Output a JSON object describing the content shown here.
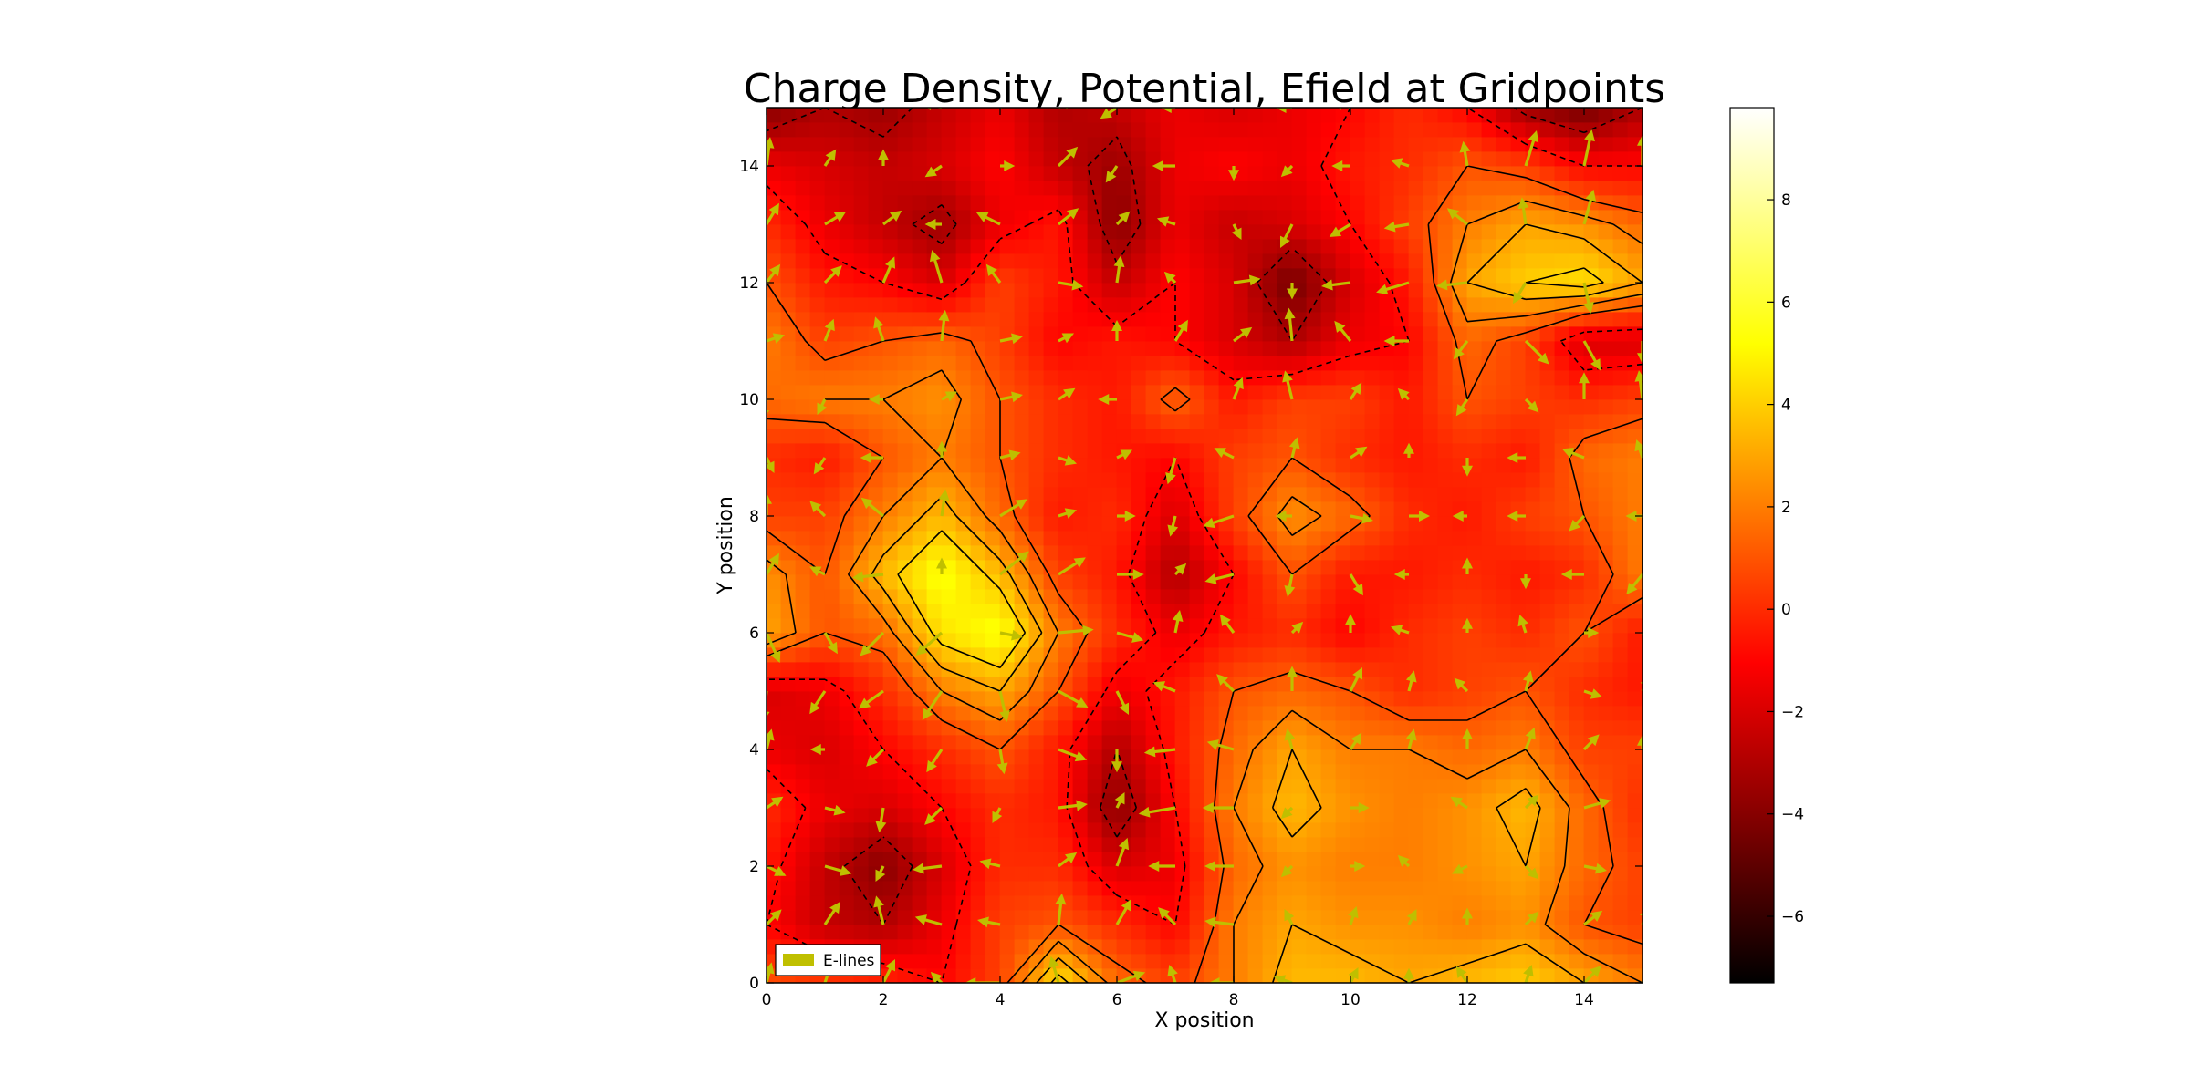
{
  "colors": {
    "background": "#ffffff",
    "arrow": "#bfbf00",
    "contour": "#000000"
  },
  "chart_data": {
    "type": "heatmap",
    "title": "Charge Density, Potential, Efield at Gridpoints",
    "xlabel": "X position",
    "ylabel": "Y position",
    "xlim": [
      0,
      15
    ],
    "ylim": [
      0,
      15
    ],
    "grid": false,
    "x_ticks": [
      "0",
      "2",
      "4",
      "6",
      "8",
      "10",
      "12",
      "14"
    ],
    "y_ticks": [
      "0",
      "2",
      "4",
      "6",
      "8",
      "10",
      "12",
      "14"
    ],
    "colorbar": {
      "range": [
        -7.3,
        9.8
      ],
      "ticks": [
        "−6",
        "−4",
        "−2",
        "0",
        "2",
        "4",
        "6",
        "8"
      ],
      "colormap": "hot"
    },
    "legend": {
      "placement": "lower-left",
      "entries": [
        "E-lines"
      ]
    },
    "field": {
      "description_grid_resolution": "1 unit",
      "x": [
        0,
        1,
        2,
        3,
        4,
        5,
        6,
        7,
        8,
        9,
        10,
        11,
        12,
        13,
        14,
        15
      ],
      "y": [
        0,
        1,
        2,
        3,
        4,
        5,
        6,
        7,
        8,
        9,
        10,
        11,
        12,
        13,
        14,
        15
      ],
      "values": [
        [
          1.0,
          0.5,
          0.0,
          -1.0,
          0.5,
          4.5,
          1.5,
          0.5,
          2.0,
          3.5,
          3.5,
          3.0,
          3.5,
          4.0,
          3.0,
          2.0
        ],
        [
          -1.0,
          -2.5,
          -3.0,
          -1.5,
          0.5,
          1.0,
          0.0,
          -1.0,
          2.0,
          3.0,
          2.5,
          2.5,
          2.0,
          2.5,
          1.0,
          0.5
        ],
        [
          -0.5,
          -2.5,
          -4.0,
          -2.0,
          0.0,
          0.0,
          -2.0,
          -1.5,
          1.5,
          2.5,
          2.0,
          2.0,
          2.5,
          3.0,
          1.5,
          0.5
        ],
        [
          0.0,
          -1.5,
          -2.0,
          -1.0,
          0.0,
          -0.5,
          -4.0,
          -1.0,
          2.0,
          3.5,
          2.5,
          2.0,
          2.5,
          3.5,
          1.5,
          0.0
        ],
        [
          -1.5,
          -2.0,
          -1.0,
          0.0,
          1.0,
          -0.5,
          -3.0,
          -0.5,
          1.5,
          3.0,
          2.0,
          2.0,
          1.5,
          2.0,
          0.5,
          0.5
        ],
        [
          -2.0,
          -1.5,
          0.0,
          2.0,
          3.0,
          1.0,
          -1.5,
          -0.5,
          1.0,
          1.5,
          1.0,
          0.0,
          0.5,
          1.0,
          0.0,
          -0.5
        ],
        [
          3.0,
          1.0,
          1.5,
          4.5,
          5.5,
          2.0,
          0.0,
          -1.5,
          -0.5,
          0.0,
          -1.0,
          0.0,
          0.5,
          0.0,
          1.0,
          -0.5
        ],
        [
          2.5,
          1.0,
          3.5,
          5.5,
          3.5,
          0.5,
          -0.5,
          -3.0,
          -1.0,
          1.0,
          -0.5,
          -0.5,
          0.0,
          -0.5,
          0.0,
          2.0
        ],
        [
          0.5,
          0.5,
          2.0,
          3.5,
          1.5,
          -0.5,
          0.0,
          -2.0,
          0.5,
          2.5,
          1.5,
          0.0,
          -0.5,
          0.5,
          1.0,
          2.0
        ],
        [
          0.0,
          -0.5,
          1.0,
          2.0,
          1.0,
          0.0,
          -0.5,
          -1.0,
          0.5,
          1.0,
          0.0,
          -0.5,
          0.0,
          -0.5,
          1.5,
          2.0
        ],
        [
          1.5,
          2.0,
          2.0,
          2.5,
          1.0,
          0.0,
          -0.5,
          1.5,
          -0.5,
          0.5,
          0.5,
          -0.5,
          1.0,
          0.5,
          0.0,
          0.5
        ],
        [
          2.0,
          0.5,
          1.0,
          1.5,
          0.5,
          -1.0,
          -0.5,
          -1.0,
          -2.0,
          -3.0,
          -1.5,
          -1.0,
          1.5,
          0.5,
          -2.0,
          -2.0
        ],
        [
          1.0,
          -0.5,
          -1.0,
          -2.0,
          0.5,
          -0.5,
          -2.5,
          -1.0,
          -2.0,
          -4.5,
          -2.0,
          -0.5,
          3.0,
          4.0,
          4.5,
          3.0
        ],
        [
          0.0,
          -1.5,
          -2.5,
          -3.5,
          -1.5,
          -0.5,
          -4.0,
          -1.5,
          -2.5,
          -2.0,
          -1.0,
          0.5,
          2.0,
          3.0,
          2.5,
          1.5
        ],
        [
          -1.5,
          -2.0,
          -2.5,
          -2.0,
          -1.0,
          -2.5,
          -3.5,
          -1.5,
          -1.0,
          -1.5,
          -0.5,
          0.0,
          1.0,
          0.5,
          -1.0,
          -1.0
        ],
        [
          -4.0,
          -3.0,
          -3.5,
          -2.5,
          -1.5,
          -3.0,
          -2.5,
          -1.5,
          -2.0,
          -1.5,
          -1.0,
          0.0,
          -1.0,
          -3.5,
          -4.5,
          -3.0
        ]
      ]
    }
  }
}
